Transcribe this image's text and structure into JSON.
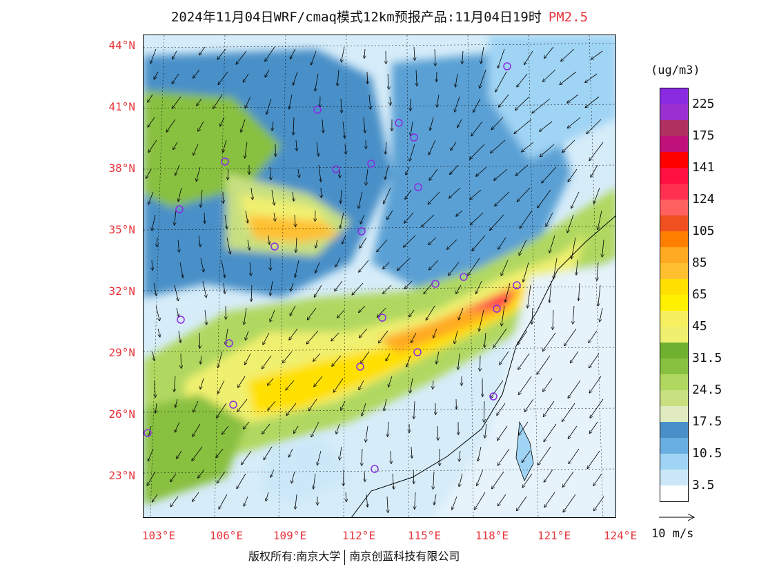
{
  "header": {
    "title": "2024年11月04日WRF/cmaq模式12km预报产品:11月04日19时",
    "pollutant": "PM2.5"
  },
  "map": {
    "lat_labels": [
      "44°N",
      "41°N",
      "38°N",
      "35°N",
      "32°N",
      "29°N",
      "26°N",
      "23°N"
    ],
    "lon_labels": [
      "103°E",
      "106°E",
      "109°E",
      "112°E",
      "115°E",
      "118°E",
      "121°E",
      "124°E"
    ],
    "city_markers": 24
  },
  "legend": {
    "unit": "(ug/m3)",
    "colors": [
      "#8a2be2",
      "#9b30d0",
      "#b03060",
      "#c0107a",
      "#ff0000",
      "#ff1040",
      "#ff3050",
      "#ff6060",
      "#f05020",
      "#ff8000",
      "#ffaa20",
      "#ffc030",
      "#ffe000",
      "#fff000",
      "#f6f060",
      "#f0f070",
      "#70b030",
      "#88c040",
      "#b0d860",
      "#c8e080",
      "#e0ecc0",
      "#4a90c8",
      "#68aee0",
      "#a0d4f4",
      "#cce8f8",
      "#ffffff"
    ],
    "labels": [
      "225",
      "175",
      "141",
      "124",
      "105",
      "85",
      "65",
      "45",
      "31.5",
      "24.5",
      "17.5",
      "10.5",
      "3.5"
    ]
  },
  "wind": {
    "reference_label": "10 m/s"
  },
  "footer": {
    "copyright_owner": "版权所有:南京大学",
    "company": "南京创蓝科技有限公司"
  }
}
